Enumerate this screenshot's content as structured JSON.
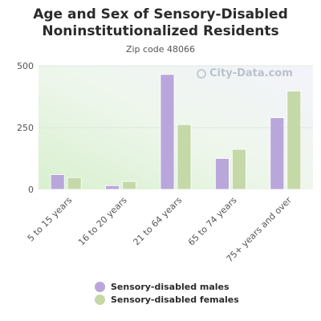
{
  "chart_data": {
    "type": "bar",
    "title": "Age and Sex of Sensory-Disabled Noninstitutionalized Residents",
    "subtitle": "Zip code 48066",
    "categories": [
      "5 to 15 years",
      "16 to 20 years",
      "21 to 64 years",
      "65 to 74 years",
      "75+ years and over"
    ],
    "series": [
      {
        "name": "Sensory-disabled males",
        "color": "#b9a7db",
        "values": [
          60,
          15,
          465,
          125,
          290
        ]
      },
      {
        "name": "Sensory-disabled females",
        "color": "#c5d9a8",
        "values": [
          48,
          32,
          262,
          162,
          398
        ]
      }
    ],
    "yticks": [
      0,
      250,
      500
    ],
    "ylim": [
      0,
      500
    ],
    "grid": true,
    "legend_position": "bottom"
  },
  "watermark": "City-Data.com"
}
